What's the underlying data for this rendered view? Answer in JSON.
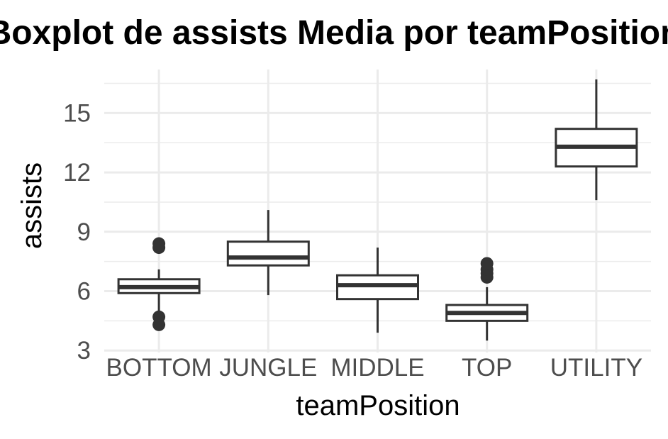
{
  "chart_data": {
    "type": "boxplot",
    "title": "Boxplot de assists Media por teamPosition",
    "xlabel": "teamPosition",
    "ylabel": "assists",
    "ylim": [
      2.9,
      17.2
    ],
    "yticks": [
      3,
      6,
      9,
      12,
      15
    ],
    "grid": true,
    "categories": [
      "BOTTOM",
      "JUNGLE",
      "MIDDLE",
      "TOP",
      "UTILITY"
    ],
    "boxes": [
      {
        "category": "BOTTOM",
        "whisker_low": 4.9,
        "q1": 5.9,
        "median": 6.2,
        "q3": 6.6,
        "whisker_high": 7.1,
        "outliers": [
          4.3,
          4.7,
          8.2,
          8.4
        ]
      },
      {
        "category": "JUNGLE",
        "whisker_low": 5.8,
        "q1": 7.3,
        "median": 7.7,
        "q3": 8.5,
        "whisker_high": 10.1,
        "outliers": []
      },
      {
        "category": "MIDDLE",
        "whisker_low": 3.9,
        "q1": 5.6,
        "median": 6.3,
        "q3": 6.8,
        "whisker_high": 8.2,
        "outliers": []
      },
      {
        "category": "TOP",
        "whisker_low": 3.5,
        "q1": 4.5,
        "median": 4.9,
        "q3": 5.3,
        "whisker_high": 6.2,
        "outliers": [
          6.7,
          6.9,
          7.1,
          7.4
        ]
      },
      {
        "category": "UTILITY",
        "whisker_low": 10.6,
        "q1": 12.3,
        "median": 13.3,
        "q3": 14.2,
        "whisker_high": 16.7,
        "outliers": []
      }
    ]
  }
}
